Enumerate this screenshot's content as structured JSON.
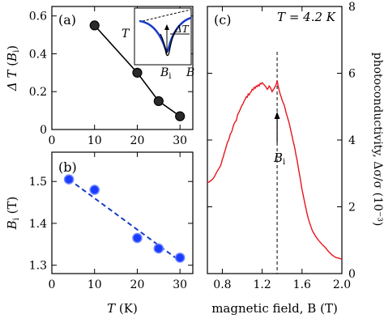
{
  "chart_data": [
    {
      "panel_label": "(a)",
      "type": "line",
      "xlabel": "",
      "ylabel": "ΔT (B_i)",
      "xlim": [
        0,
        33
      ],
      "ylim": [
        0,
        0.65
      ],
      "xticks": [
        0,
        10,
        20,
        30
      ],
      "yticks": [
        0,
        0.2,
        0.4,
        0.6
      ],
      "ytick_labels": [
        "0",
        "0.2",
        "0.4",
        "0.6"
      ],
      "series": [
        {
          "x": [
            10,
            20,
            25,
            30
          ],
          "y": [
            0.55,
            0.3,
            0.15,
            0.07
          ],
          "color": "#000000",
          "marker_fill": "#2a2a2a"
        }
      ],
      "inset": {
        "ylabel": "T",
        "xlabel": "B",
        "marker_label": "B",
        "marker_sub": "i",
        "delta_label": "ΔT",
        "curve_color": "#1a3cc8"
      }
    },
    {
      "panel_label": "(b)",
      "type": "scatter",
      "xlabel": "T (K)",
      "ylabel": "B_i (T)",
      "xlim": [
        0,
        33
      ],
      "ylim": [
        1.28,
        1.57
      ],
      "xticks": [
        0,
        10,
        20,
        30
      ],
      "yticks": [
        1.3,
        1.4,
        1.5
      ],
      "ytick_labels": [
        "1.3",
        "1.4",
        "1.5"
      ],
      "series": [
        {
          "x": [
            4,
            10,
            20,
            25,
            30
          ],
          "y": [
            1.505,
            1.48,
            1.365,
            1.34,
            1.318
          ],
          "color": "#1a3cff"
        }
      ],
      "fit_line": {
        "x": [
          4,
          30
        ],
        "y": [
          1.505,
          1.31
        ],
        "style": "dashed",
        "color": "#1a3cc8"
      }
    },
    {
      "panel_label": "(c)",
      "type": "line",
      "annotation": "T = 4.2 K",
      "xlabel": "magnetic field, B (T)",
      "ylabel": "photoconductivity, Δσ/σ (10⁻³)",
      "xlim": [
        0.65,
        2.0
      ],
      "ylim": [
        0,
        8
      ],
      "xticks": [
        0.8,
        1.2,
        1.6,
        2.0
      ],
      "xtick_labels": [
        "0.8",
        "1.2",
        "1.6",
        "2.0"
      ],
      "yticks": [
        0,
        2,
        4,
        6,
        8
      ],
      "ytick_labels": [
        "0",
        "2",
        "4",
        "6",
        "8"
      ],
      "vline_x": 1.35,
      "arrow_label": "B",
      "arrow_sub": "i",
      "series": [
        {
          "color": "#e8141e",
          "x": [
            0.65,
            0.67,
            0.7,
            0.72,
            0.74,
            0.76,
            0.78,
            0.79,
            0.8,
            0.81,
            0.82,
            0.83,
            0.84,
            0.85,
            0.86,
            0.87,
            0.88,
            0.89,
            0.9,
            0.91,
            0.92,
            0.93,
            0.94,
            0.95,
            0.96,
            0.97,
            0.98,
            0.99,
            1.0,
            1.01,
            1.02,
            1.03,
            1.04,
            1.05,
            1.06,
            1.07,
            1.08,
            1.09,
            1.1,
            1.11,
            1.12,
            1.13,
            1.14,
            1.15,
            1.16,
            1.17,
            1.18,
            1.19,
            1.2,
            1.21,
            1.22,
            1.23,
            1.24,
            1.25,
            1.26,
            1.27,
            1.28,
            1.29,
            1.3,
            1.31,
            1.32,
            1.33,
            1.34,
            1.35,
            1.36,
            1.37,
            1.38,
            1.39,
            1.4,
            1.41,
            1.42,
            1.43,
            1.44,
            1.45,
            1.46,
            1.47,
            1.48,
            1.49,
            1.5,
            1.51,
            1.52,
            1.53,
            1.54,
            1.55,
            1.56,
            1.57,
            1.58,
            1.59,
            1.6,
            1.61,
            1.62,
            1.63,
            1.64,
            1.65,
            1.66,
            1.67,
            1.68,
            1.69,
            1.7,
            1.71,
            1.72,
            1.73,
            1.74,
            1.75,
            1.76,
            1.77,
            1.78,
            1.8,
            1.82,
            1.84,
            1.86,
            1.88,
            1.9,
            1.92,
            1.94,
            1.96,
            1.98,
            2.0
          ],
          "y": [
            2.72,
            2.75,
            2.82,
            2.9,
            3.02,
            3.12,
            3.22,
            3.3,
            3.42,
            3.5,
            3.62,
            3.7,
            3.82,
            3.92,
            3.98,
            4.06,
            4.18,
            4.22,
            4.3,
            4.42,
            4.5,
            4.55,
            4.58,
            4.72,
            4.8,
            4.85,
            4.92,
            5.0,
            5.05,
            5.1,
            5.18,
            5.22,
            5.3,
            5.28,
            5.38,
            5.35,
            5.42,
            5.45,
            5.52,
            5.5,
            5.58,
            5.55,
            5.62,
            5.6,
            5.65,
            5.62,
            5.7,
            5.68,
            5.72,
            5.68,
            5.65,
            5.62,
            5.58,
            5.52,
            5.55,
            5.62,
            5.58,
            5.52,
            5.45,
            5.5,
            5.55,
            5.6,
            5.65,
            5.78,
            5.62,
            5.5,
            5.38,
            5.3,
            5.2,
            5.12,
            5.05,
            4.95,
            4.82,
            4.72,
            4.62,
            4.52,
            4.38,
            4.25,
            4.12,
            3.98,
            3.85,
            3.72,
            3.55,
            3.4,
            3.22,
            3.05,
            2.88,
            2.7,
            2.52,
            2.38,
            2.22,
            2.08,
            1.95,
            1.8,
            1.68,
            1.58,
            1.48,
            1.4,
            1.32,
            1.25,
            1.2,
            1.15,
            1.1,
            1.06,
            1.02,
            0.98,
            0.95,
            0.88,
            0.82,
            0.76,
            0.68,
            0.62,
            0.56,
            0.52,
            0.48,
            0.47,
            0.45,
            0.43
          ]
        }
      ]
    }
  ]
}
